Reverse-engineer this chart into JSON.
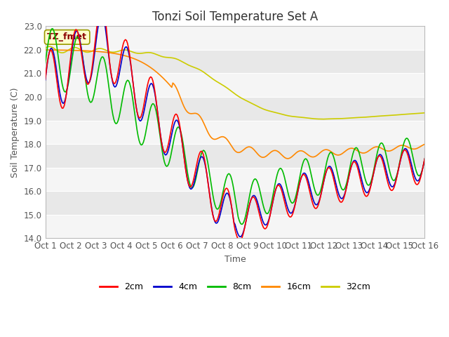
{
  "title": "Tonzi Soil Temperature Set A",
  "xlabel": "Time",
  "ylabel": "Soil Temperature (C)",
  "annotation": "TZ_fmet",
  "ylim": [
    14.0,
    23.0
  ],
  "yticks": [
    14.0,
    15.0,
    16.0,
    17.0,
    18.0,
    19.0,
    20.0,
    21.0,
    22.0,
    23.0
  ],
  "xtick_labels": [
    "Oct 1",
    "Oct 2",
    "Oct 3",
    "Oct 4",
    "Oct 5",
    "Oct 6",
    "Oct 7",
    "Oct 8",
    "Oct 9",
    "Oct 10",
    "Oct 11",
    "Oct 12",
    "Oct 13",
    "Oct 14",
    "Oct 15",
    "Oct 16"
  ],
  "series": {
    "2cm": {
      "color": "#ff0000",
      "lw": 1.2
    },
    "4cm": {
      "color": "#0000cc",
      "lw": 1.2
    },
    "8cm": {
      "color": "#00bb00",
      "lw": 1.2
    },
    "16cm": {
      "color": "#ff8800",
      "lw": 1.2
    },
    "32cm": {
      "color": "#cccc00",
      "lw": 1.2
    }
  },
  "background_color": "#ffffff",
  "band_colors": [
    "#f5f5f5",
    "#e8e8e8"
  ],
  "grid_color": "#ffffff",
  "title_fontsize": 12,
  "label_fontsize": 9,
  "tick_fontsize": 8.5
}
